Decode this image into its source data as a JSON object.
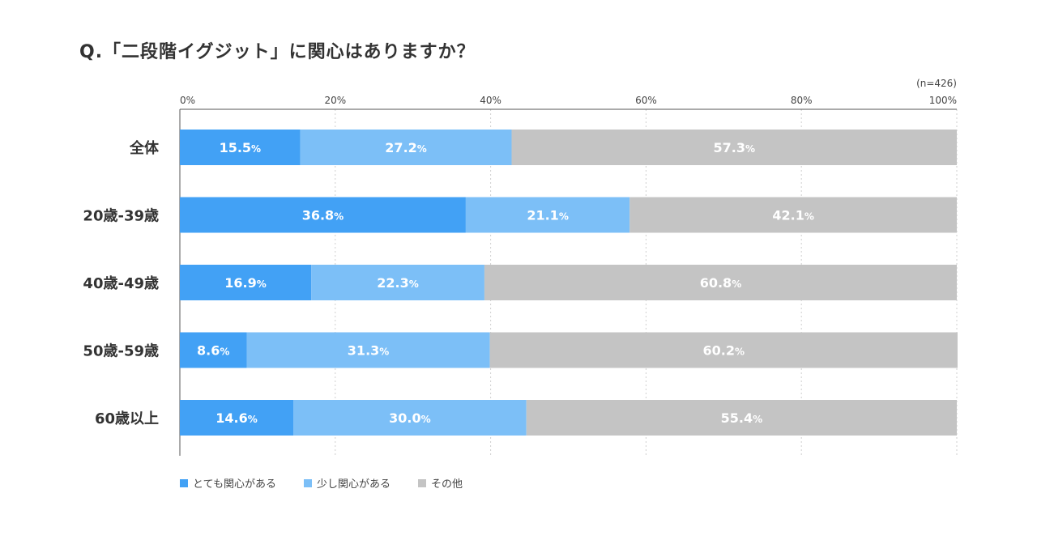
{
  "chart_data": {
    "type": "bar",
    "orientation": "horizontal",
    "stacked": true,
    "title": "Q.「二段階イグジット」に関心はありますか？",
    "sample_note": "(n=426)",
    "categories": [
      "全体",
      "20歳-39歳",
      "40歳-49歳",
      "50歳-59歳",
      "60歳以上"
    ],
    "series": [
      {
        "name": "とても関心がある",
        "color": "#42a1f5",
        "values": [
          15.5,
          36.8,
          16.9,
          8.6,
          14.6
        ]
      },
      {
        "name": "少し関心がある",
        "color": "#7cbff7",
        "values": [
          27.2,
          21.1,
          22.3,
          31.3,
          30.0
        ]
      },
      {
        "name": "その他",
        "color": "#c4c4c4",
        "values": [
          57.3,
          42.1,
          60.8,
          60.2,
          55.4
        ]
      }
    ],
    "value_suffix": "%",
    "xlim": [
      0,
      100
    ],
    "x_ticks": [
      0,
      20,
      40,
      60,
      80,
      100
    ],
    "x_tick_labels": [
      "0%",
      "20%",
      "40%",
      "60%",
      "80%",
      "100%"
    ],
    "grid": true,
    "legend_position": "bottom-left"
  }
}
